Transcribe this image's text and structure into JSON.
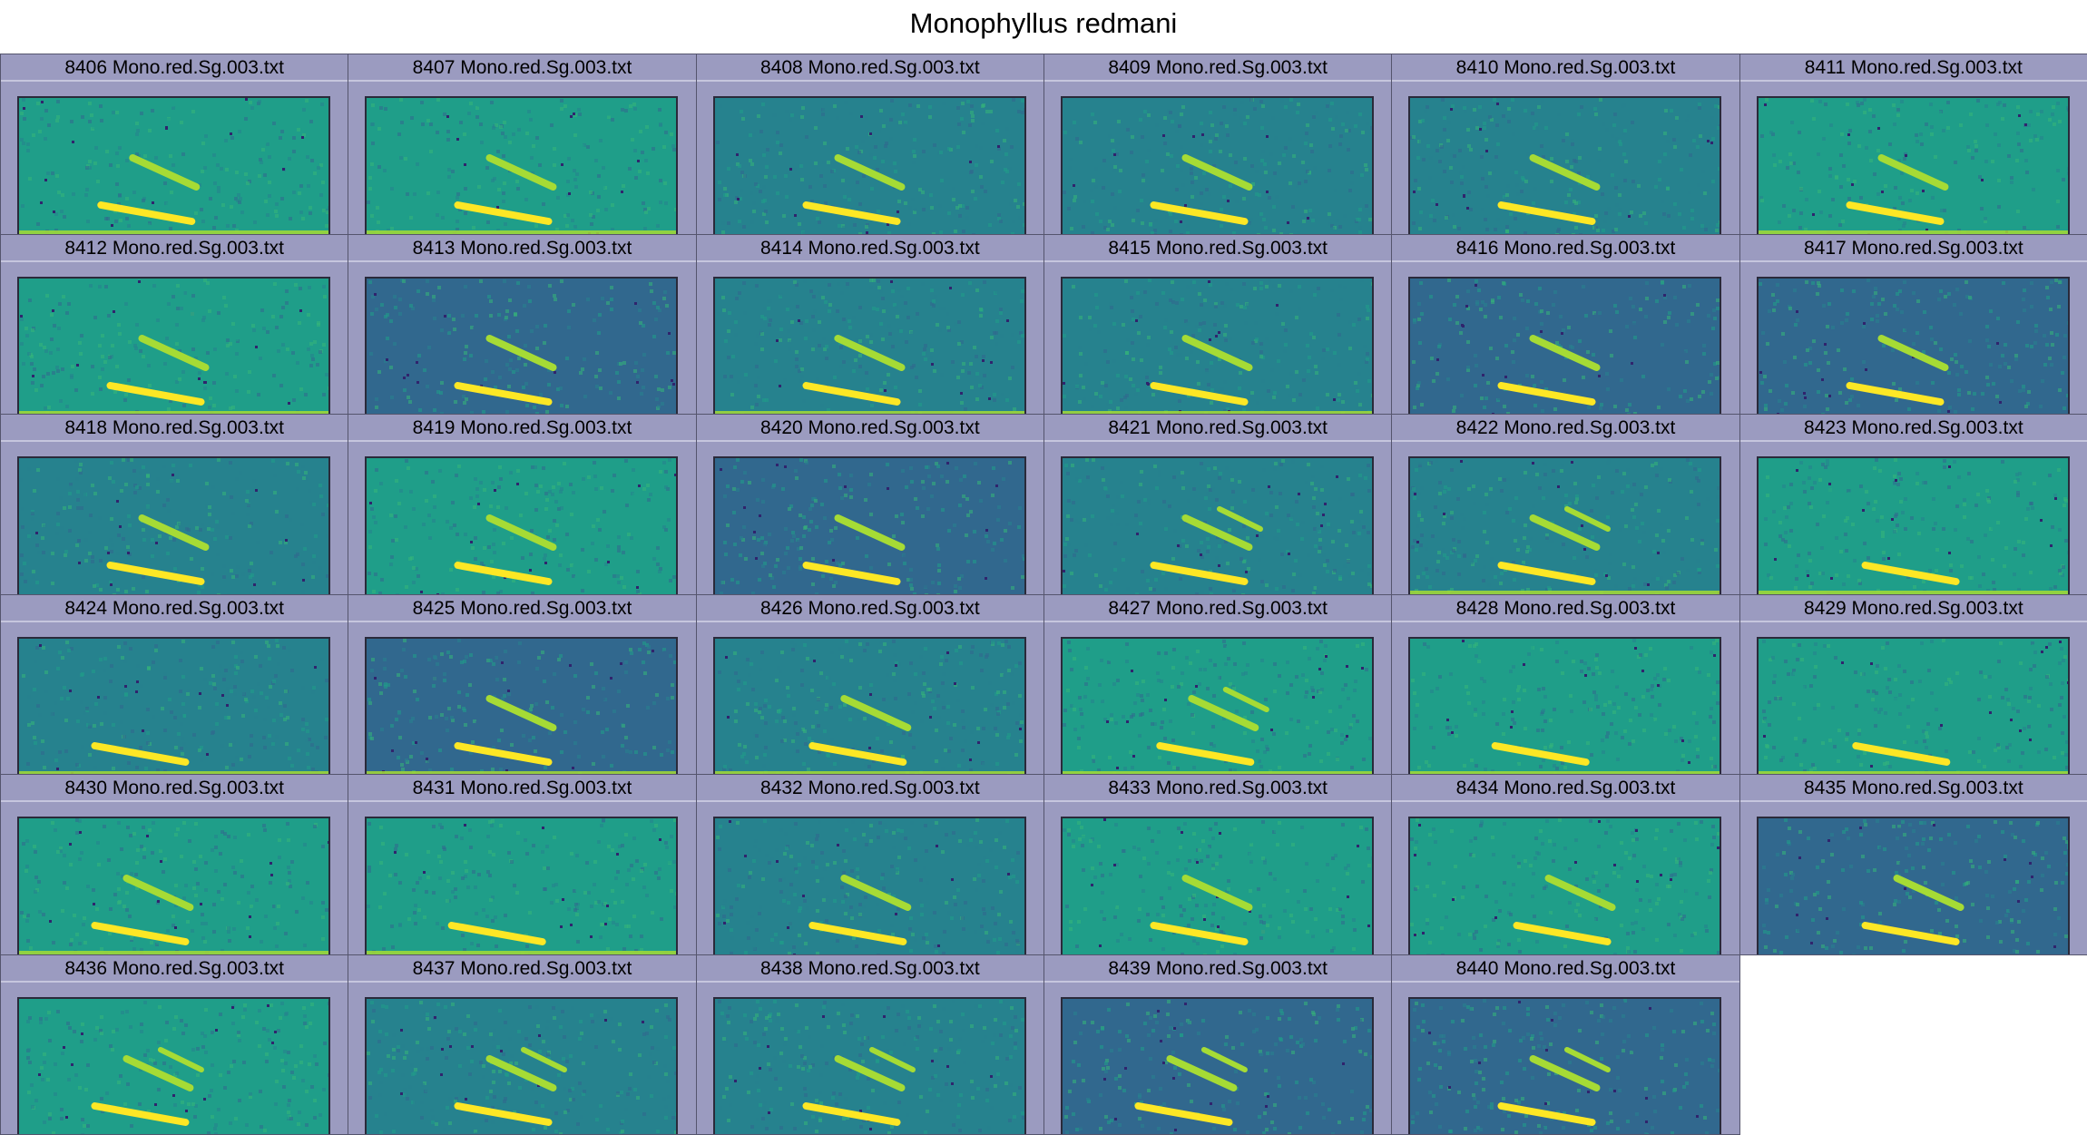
{
  "figure": {
    "title": "Monophyllus redmani",
    "columns": 6,
    "panel_background": "#9b9bc0",
    "panel_rule_color": "#c6c6de"
  },
  "colors": {
    "noise_dark": "#31688e",
    "noise_mid": "#26828e",
    "noise_teal": "#1f9e89",
    "noise_green": "#35b779",
    "signal_yellow": "#fde725",
    "signal_lime": "#a6db35",
    "speckle": "#30246d"
  },
  "chart_data": {
    "type": "heatmap",
    "title": "Monophyllus redmani",
    "panels": [
      {
        "label": "8406 Mono.red.Sg.003.txt",
        "calls": 2,
        "call_time": 0.47,
        "background": "green",
        "low_band": true
      },
      {
        "label": "8407 Mono.red.Sg.003.txt",
        "calls": 2,
        "call_time": 0.5,
        "background": "green",
        "low_band": true
      },
      {
        "label": "8408 Mono.red.Sg.003.txt",
        "calls": 2,
        "call_time": 0.5,
        "background": "teal",
        "low_band": false
      },
      {
        "label": "8409 Mono.red.Sg.003.txt",
        "calls": 2,
        "call_time": 0.5,
        "background": "teal",
        "low_band": false
      },
      {
        "label": "8410 Mono.red.Sg.003.txt",
        "calls": 2,
        "call_time": 0.5,
        "background": "teal",
        "low_band": false
      },
      {
        "label": "8411 Mono.red.Sg.003.txt",
        "calls": 2,
        "call_time": 0.5,
        "background": "green",
        "low_band": true
      },
      {
        "label": "8412 Mono.red.Sg.003.txt",
        "calls": 2,
        "call_time": 0.5,
        "background": "green",
        "low_band": true
      },
      {
        "label": "8413 Mono.red.Sg.003.txt",
        "calls": 2,
        "call_time": 0.5,
        "background": "dark",
        "low_band": false
      },
      {
        "label": "8414 Mono.red.Sg.003.txt",
        "calls": 2,
        "call_time": 0.5,
        "background": "teal",
        "low_band": true
      },
      {
        "label": "8415 Mono.red.Sg.003.txt",
        "calls": 2,
        "call_time": 0.5,
        "background": "teal",
        "low_band": true
      },
      {
        "label": "8416 Mono.red.Sg.003.txt",
        "calls": 2,
        "call_time": 0.5,
        "background": "dark",
        "low_band": false
      },
      {
        "label": "8417 Mono.red.Sg.003.txt",
        "calls": 2,
        "call_time": 0.5,
        "background": "dark",
        "low_band": false
      },
      {
        "label": "8418 Mono.red.Sg.003.txt",
        "calls": 2,
        "call_time": 0.5,
        "background": "teal",
        "low_band": false
      },
      {
        "label": "8419 Mono.red.Sg.003.txt",
        "calls": 2,
        "call_time": 0.5,
        "background": "green",
        "low_band": false
      },
      {
        "label": "8420 Mono.red.Sg.003.txt",
        "calls": 2,
        "call_time": 0.5,
        "background": "dark",
        "low_band": false
      },
      {
        "label": "8421 Mono.red.Sg.003.txt",
        "calls": 3,
        "call_time": 0.5,
        "background": "teal",
        "low_band": false
      },
      {
        "label": "8422 Mono.red.Sg.003.txt",
        "calls": 3,
        "call_time": 0.5,
        "background": "teal",
        "low_band": true
      },
      {
        "label": "8423 Mono.red.Sg.003.txt",
        "calls": 1,
        "call_time": 0.55,
        "background": "green",
        "low_band": true
      },
      {
        "label": "8424 Mono.red.Sg.003.txt",
        "calls": 1,
        "call_time": 0.45,
        "background": "teal",
        "low_band": true
      },
      {
        "label": "8425 Mono.red.Sg.003.txt",
        "calls": 2,
        "call_time": 0.5,
        "background": "dark",
        "low_band": true
      },
      {
        "label": "8426 Mono.red.Sg.003.txt",
        "calls": 2,
        "call_time": 0.52,
        "background": "teal",
        "low_band": true
      },
      {
        "label": "8427 Mono.red.Sg.003.txt",
        "calls": 3,
        "call_time": 0.52,
        "background": "green",
        "low_band": true
      },
      {
        "label": "8428 Mono.red.Sg.003.txt",
        "calls": 1,
        "call_time": 0.48,
        "background": "green",
        "low_band": true
      },
      {
        "label": "8429 Mono.red.Sg.003.txt",
        "calls": 1,
        "call_time": 0.52,
        "background": "green",
        "low_band": true
      },
      {
        "label": "8430 Mono.red.Sg.003.txt",
        "calls": 2,
        "call_time": 0.45,
        "background": "green",
        "low_band": true
      },
      {
        "label": "8431 Mono.red.Sg.003.txt",
        "calls": 1,
        "call_time": 0.48,
        "background": "green",
        "low_band": true
      },
      {
        "label": "8432 Mono.red.Sg.003.txt",
        "calls": 2,
        "call_time": 0.52,
        "background": "teal",
        "low_band": false
      },
      {
        "label": "8433 Mono.red.Sg.003.txt",
        "calls": 2,
        "call_time": 0.5,
        "background": "green",
        "low_band": false
      },
      {
        "label": "8434 Mono.red.Sg.003.txt",
        "calls": 2,
        "call_time": 0.55,
        "background": "green",
        "low_band": false
      },
      {
        "label": "8435 Mono.red.Sg.003.txt",
        "calls": 2,
        "call_time": 0.55,
        "background": "dark",
        "low_band": false
      },
      {
        "label": "8436 Mono.red.Sg.003.txt",
        "calls": 3,
        "call_time": 0.45,
        "background": "green",
        "low_band": false
      },
      {
        "label": "8437 Mono.red.Sg.003.txt",
        "calls": 3,
        "call_time": 0.5,
        "background": "teal",
        "low_band": false
      },
      {
        "label": "8438 Mono.red.Sg.003.txt",
        "calls": 3,
        "call_time": 0.5,
        "background": "teal",
        "low_band": false
      },
      {
        "label": "8439 Mono.red.Sg.003.txt",
        "calls": 3,
        "call_time": 0.45,
        "background": "dark",
        "low_band": false
      },
      {
        "label": "8440 Mono.red.Sg.003.txt",
        "calls": 3,
        "call_time": 0.5,
        "background": "dark",
        "low_band": false
      }
    ]
  }
}
